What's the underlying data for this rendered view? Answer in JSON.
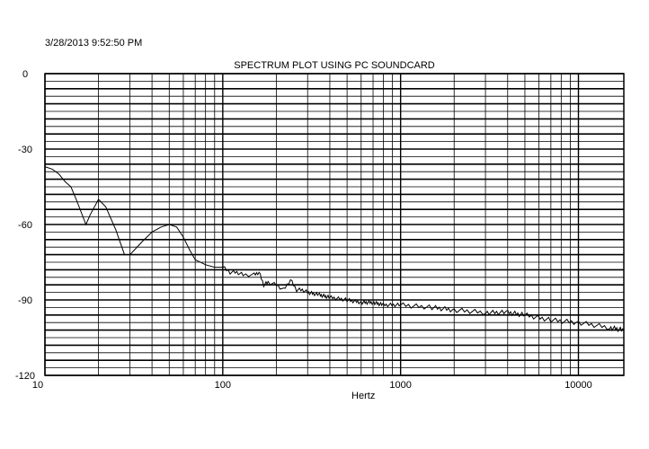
{
  "timestamp": "3/28/2013 9:52:50 PM",
  "chart_data": {
    "type": "line",
    "title": "SPECTRUM PLOT USING PC SOUNDCARD",
    "xlabel": "Hertz",
    "ylabel": "",
    "x_scale": "log",
    "xlim": [
      10,
      18000
    ],
    "ylim": [
      -120,
      0
    ],
    "x_ticks": [
      "10",
      "100",
      "1000",
      "10000"
    ],
    "y_ticks": [
      "0",
      "-30",
      "-60",
      "-90",
      "-120"
    ],
    "grid": true,
    "series": [
      {
        "name": "",
        "color": "#000000",
        "x": [
          10,
          11,
          12,
          13,
          14,
          15,
          17,
          18,
          20,
          22,
          25,
          28,
          30,
          32,
          35,
          40,
          45,
          50,
          55,
          60,
          65,
          70,
          80,
          90,
          100,
          110,
          120,
          130,
          150,
          160,
          170,
          180,
          200,
          220,
          240,
          260,
          280,
          300,
          350,
          400,
          500,
          600,
          700,
          800,
          1000,
          1500,
          2000,
          3000,
          4000,
          5000,
          7000,
          10000,
          15000,
          18000
        ],
        "y": [
          -37,
          -38,
          -40,
          -43,
          -45,
          -50,
          -60,
          -56,
          -50,
          -53,
          -62,
          -72,
          -72,
          -70,
          -67,
          -63,
          -61,
          -60,
          -61,
          -65,
          -70,
          -74,
          -76,
          -77,
          -77,
          -79,
          -79,
          -80,
          -80,
          -79,
          -84,
          -83,
          -84,
          -86,
          -82,
          -86,
          -86,
          -87,
          -88,
          -89,
          -90,
          -91,
          -91,
          -92,
          -92,
          -93,
          -94,
          -95,
          -95,
          -96,
          -98,
          -99,
          -101,
          -102
        ]
      }
    ]
  }
}
